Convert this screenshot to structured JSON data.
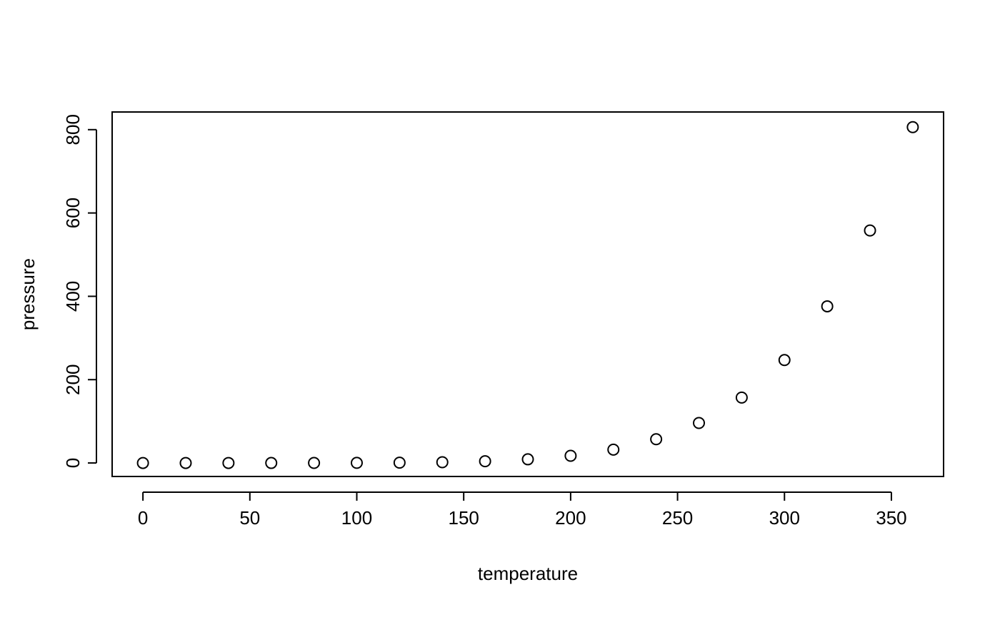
{
  "chart_data": {
    "type": "scatter",
    "title": "",
    "xlabel": "temperature",
    "ylabel": "pressure",
    "xlim": [
      -14.4,
      374.4
    ],
    "ylim": [
      -32.4,
      842.4
    ],
    "x_ticks": [
      0,
      50,
      100,
      150,
      200,
      250,
      300,
      350
    ],
    "x_tick_labels": [
      "0",
      "50",
      "100",
      "150",
      "200",
      "250",
      "300",
      "350"
    ],
    "y_ticks": [
      0,
      200,
      400,
      600,
      800
    ],
    "y_tick_labels": [
      "0",
      "200",
      "400",
      "600",
      "800"
    ],
    "grid": false,
    "legend": "none",
    "marker": "open-circle",
    "colors": {
      "axis": "#000000",
      "points": "#000000",
      "background": "#ffffff"
    },
    "series": [
      {
        "x": [
          0,
          20,
          40,
          60,
          80,
          100,
          120,
          140,
          160,
          180,
          200,
          220,
          240,
          260,
          280,
          300,
          320,
          340,
          360
        ],
        "y": [
          0.0002,
          0.0012,
          0.006,
          0.03,
          0.09,
          0.27,
          0.75,
          1.85,
          4.2,
          8.8,
          17.3,
          32.1,
          57,
          96,
          157,
          247,
          376,
          558,
          806
        ]
      }
    ]
  }
}
